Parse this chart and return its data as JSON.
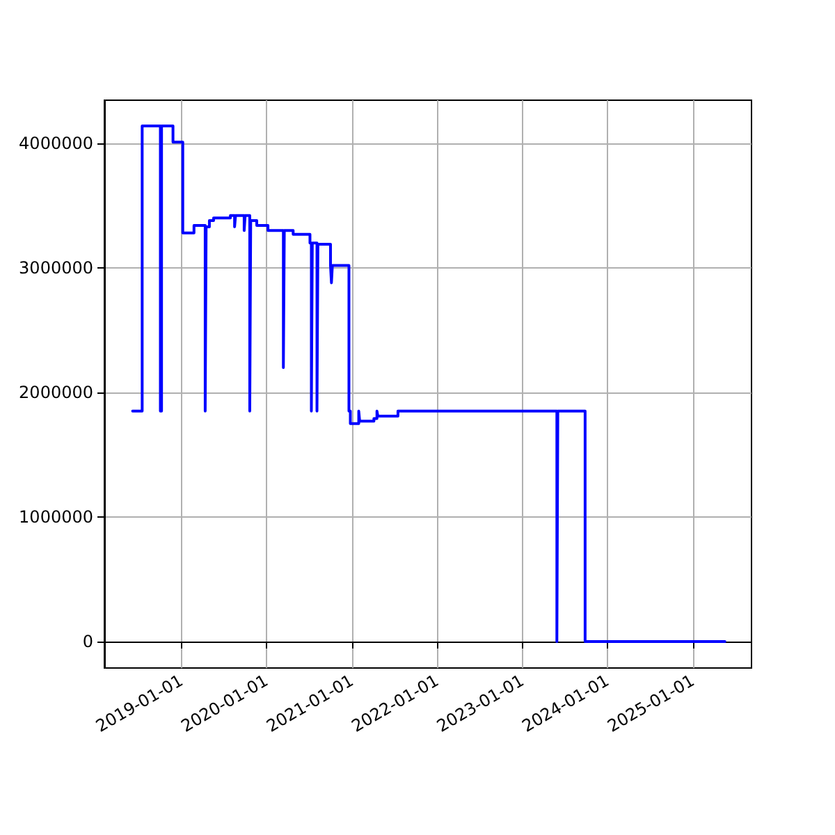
{
  "chart_data": {
    "type": "step",
    "x": [
      "2018-06-06",
      "2018-07-17",
      "2018-10-03",
      "2018-10-08",
      "2018-11-26",
      "2019-01-07",
      "2019-02-24",
      "2019-04-13",
      "2019-04-17",
      "2019-05-01",
      "2019-05-19",
      "2019-07-30",
      "2019-08-17",
      "2019-08-21",
      "2019-09-27",
      "2019-10-01",
      "2019-10-21",
      "2019-10-25",
      "2019-11-20",
      "2020-01-07",
      "2020-03-13",
      "2020-03-17",
      "2020-04-24",
      "2020-07-05",
      "2020-07-11",
      "2020-07-15",
      "2020-08-04",
      "2020-08-08",
      "2020-10-01",
      "2020-10-05",
      "2020-10-09",
      "2020-12-19",
      "2020-12-25",
      "2021-01-30",
      "2021-02-03",
      "2021-04-05",
      "2021-04-18",
      "2021-04-22",
      "2021-07-17",
      "2023-05-29",
      "2023-06-02",
      "2023-09-27",
      "2025-05-18"
    ],
    "series": [
      {
        "color": "#0000ff",
        "values": [
          1850000,
          4140000,
          1850000,
          4140000,
          4010000,
          3280000,
          3340000,
          1850000,
          3330000,
          3380000,
          3400000,
          3420000,
          3330000,
          3420000,
          3300000,
          3420000,
          1850000,
          3380000,
          3340000,
          3300000,
          2200000,
          3300000,
          3270000,
          3200000,
          1850000,
          3200000,
          1850000,
          3190000,
          3020000,
          2880000,
          3020000,
          1850000,
          1750000,
          1850000,
          1770000,
          1790000,
          1850000,
          1810000,
          1850000,
          0,
          1850000,
          0,
          0
        ]
      }
    ],
    "xlim": [
      "2018-02-05",
      "2025-09-09"
    ],
    "xticks": [
      "2019-01-01",
      "2020-01-01",
      "2021-01-01",
      "2022-01-01",
      "2023-01-01",
      "2024-01-01",
      "2025-01-01"
    ],
    "ylim": [
      -212000,
      4346000
    ],
    "yticks": [
      0,
      1000000,
      2000000,
      3000000,
      4000000
    ],
    "grid": true,
    "marker": "none",
    "line_style": "solid"
  }
}
